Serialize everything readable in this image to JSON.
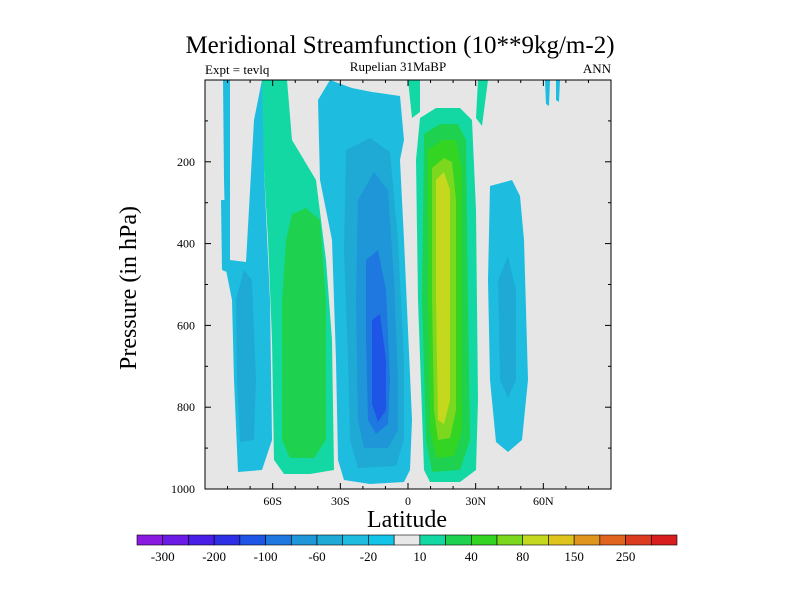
{
  "chart_data": {
    "type": "heatmap",
    "title": "Meridional Streamfunction (10**9kg/m-2)",
    "subtitle_center": "Rupelian  31MaBP",
    "subtitle_left": "Expt = tevlq",
    "subtitle_right": "ANN",
    "xlabel": "Latitude",
    "ylabel": "Pressure (in hPa)",
    "xlim": [
      -90,
      90
    ],
    "ylim": [
      0,
      1000
    ],
    "y_inverted": true,
    "x_ticks": [
      {
        "value": -60,
        "label": "60S"
      },
      {
        "value": -30,
        "label": "30S"
      },
      {
        "value": 0,
        "label": "0"
      },
      {
        "value": 30,
        "label": "30N"
      },
      {
        "value": 60,
        "label": "60N"
      }
    ],
    "y_ticks": [
      {
        "value": 200,
        "label": "200"
      },
      {
        "value": 400,
        "label": "400"
      },
      {
        "value": 600,
        "label": "600"
      },
      {
        "value": 800,
        "label": "800"
      },
      {
        "value": 1000,
        "label": "1000"
      }
    ],
    "contour_levels": [
      -300,
      -250,
      -200,
      -150,
      -100,
      -80,
      -60,
      -40,
      -20,
      -10,
      10,
      20,
      40,
      60,
      80,
      100,
      150,
      200,
      250,
      300
    ],
    "colorbar_labels": [
      "-300",
      "-200",
      "-100",
      "-60",
      "-20",
      "10",
      "40",
      "80",
      "150",
      "250"
    ],
    "colorbar_labeled_levels": [
      -300,
      -200,
      -100,
      -60,
      -20,
      10,
      40,
      80,
      150,
      250
    ],
    "colorbar_colors": [
      "#8a1adf",
      "#6c1ae6",
      "#4b1ee8",
      "#2e2ee6",
      "#1f55e6",
      "#1e78e0",
      "#1e96d8",
      "#1eaad4",
      "#1ebde0",
      "#12c4e8",
      "#e8e8e8",
      "#14d8a4",
      "#1ed250",
      "#34d422",
      "#7cd81e",
      "#c4d81e",
      "#e0c41e",
      "#e0961e",
      "#e0641e",
      "#dc3c1e",
      "#d81e1e"
    ],
    "cells": [
      {
        "lat_range": [
          -80,
          -57
        ],
        "p_peak": 600,
        "value": -20,
        "color": "#1ebde0"
      },
      {
        "lat_range": [
          -77,
          -64
        ],
        "p_peak": 580,
        "value": -40,
        "color": "#1eaad4"
      },
      {
        "lat_range": [
          -57,
          -34
        ],
        "p_peak": 600,
        "value": 15,
        "color": "#14d8a4"
      },
      {
        "lat_range": [
          -54,
          -37
        ],
        "p_peak": 600,
        "value": 30,
        "color": "#1ed250"
      },
      {
        "lat_range": [
          -38,
          0
        ],
        "p_peak": 700,
        "value": -20,
        "color": "#1ebde0"
      },
      {
        "lat_range": [
          -33,
          -4
        ],
        "p_peak": 700,
        "value": -40,
        "color": "#1eaad4"
      },
      {
        "lat_range": [
          -29,
          -7
        ],
        "p_peak": 700,
        "value": -60,
        "color": "#1e96d8"
      },
      {
        "lat_range": [
          -25,
          -12
        ],
        "p_peak": 700,
        "value": -80,
        "color": "#1e78e0"
      },
      {
        "lat_range": [
          -20,
          -15
        ],
        "p_peak": 700,
        "value": -100,
        "color": "#1f55e6"
      },
      {
        "lat_range": [
          7,
          27
        ],
        "p_peak": 600,
        "value": 15,
        "color": "#14d8a4"
      },
      {
        "lat_range": [
          9,
          26
        ],
        "p_peak": 600,
        "value": 30,
        "color": "#1ed250"
      },
      {
        "lat_range": [
          11,
          24
        ],
        "p_peak": 600,
        "value": 50,
        "color": "#34d422"
      },
      {
        "lat_range": [
          12,
          21
        ],
        "p_peak": 600,
        "value": 70,
        "color": "#7cd81e"
      },
      {
        "lat_range": [
          14,
          19
        ],
        "p_peak": 600,
        "value": 80,
        "color": "#c4d81e"
      },
      {
        "lat_range": [
          36,
          51
        ],
        "p_peak": 600,
        "value": -20,
        "color": "#1ebde0"
      },
      {
        "lat_range": [
          41,
          48
        ],
        "p_peak": 600,
        "value": -40,
        "color": "#1eaad4"
      }
    ]
  }
}
